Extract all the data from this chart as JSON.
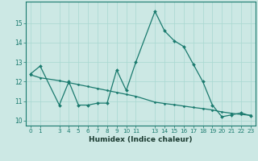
{
  "x_main": [
    0,
    1,
    3,
    4,
    5,
    6,
    7,
    8,
    9,
    10,
    11,
    13,
    14,
    15,
    16,
    17,
    18,
    19,
    20,
    21,
    22,
    23
  ],
  "y_main": [
    12.4,
    12.8,
    10.8,
    12.0,
    10.8,
    10.8,
    10.9,
    10.9,
    12.6,
    11.55,
    13.0,
    15.6,
    14.6,
    14.1,
    13.8,
    12.9,
    12.0,
    10.8,
    10.2,
    10.3,
    10.4,
    10.25
  ],
  "x_base": [
    0,
    1,
    3,
    4,
    5,
    6,
    7,
    8,
    9,
    10,
    11,
    13,
    14,
    15,
    16,
    17,
    18,
    19,
    20,
    21,
    22,
    23
  ],
  "y_base": [
    12.35,
    12.2,
    12.05,
    11.95,
    11.85,
    11.75,
    11.65,
    11.55,
    11.45,
    11.35,
    11.25,
    10.95,
    10.88,
    10.82,
    10.75,
    10.68,
    10.62,
    10.55,
    10.45,
    10.38,
    10.32,
    10.28
  ],
  "line_color": "#1a7a6e",
  "bg_color": "#cce8e4",
  "grid_color": "#a8d8d0",
  "xlabel": "Humidex (Indice chaleur)",
  "xlim": [
    -0.5,
    23.5
  ],
  "ylim": [
    9.75,
    16.1
  ],
  "yticks": [
    10,
    11,
    12,
    13,
    14,
    15
  ],
  "xticks": [
    0,
    1,
    3,
    4,
    5,
    6,
    7,
    8,
    9,
    10,
    11,
    13,
    14,
    15,
    16,
    17,
    18,
    19,
    20,
    21,
    22,
    23
  ],
  "xlabel_fontsize": 6.5,
  "tick_fontsize": 5.2
}
